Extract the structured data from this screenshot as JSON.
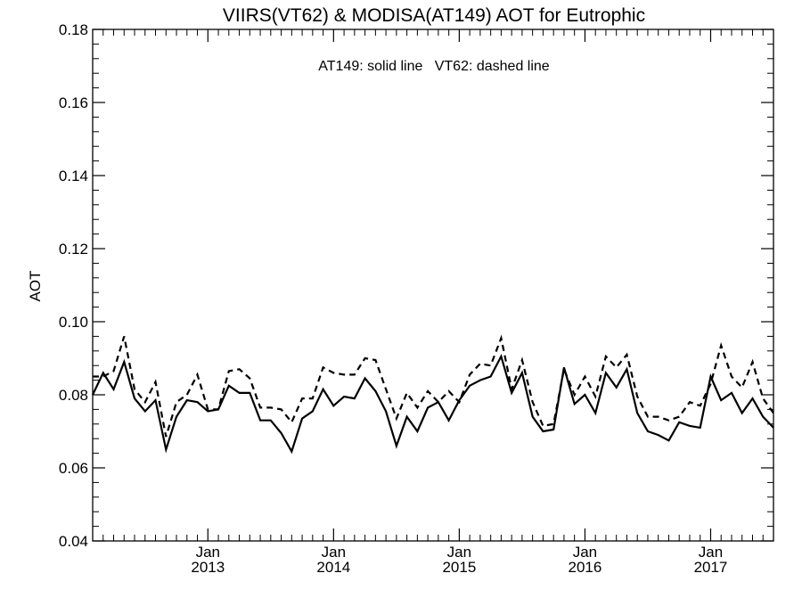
{
  "chart_data": {
    "type": "line",
    "title": "VIIRS(VT62) & MODISA(AT149)  AOT for Eutrophic",
    "annotation": "AT149: solid line   VT62: dashed line",
    "ylabel": "AOT",
    "xlabel": "",
    "ylim": [
      0.04,
      0.18
    ],
    "yticks": [
      "0.04",
      "0.06",
      "0.08",
      "0.10",
      "0.12",
      "0.14",
      "0.16",
      "0.18"
    ],
    "x_range": [
      "2012-02",
      "2017-07"
    ],
    "xtick_labels": [
      {
        "month": "Jan",
        "year": "2013",
        "date": "2013-01"
      },
      {
        "month": "Jan",
        "year": "2014",
        "date": "2014-01"
      },
      {
        "month": "Jan",
        "year": "2015",
        "date": "2015-01"
      },
      {
        "month": "Jan",
        "year": "2016",
        "date": "2016-01"
      },
      {
        "month": "Jan",
        "year": "2017",
        "date": "2017-01"
      }
    ],
    "x": [
      "2012-02",
      "2012-03",
      "2012-04",
      "2012-05",
      "2012-06",
      "2012-07",
      "2012-08",
      "2012-09",
      "2012-10",
      "2012-11",
      "2012-12",
      "2013-01",
      "2013-02",
      "2013-03",
      "2013-04",
      "2013-05",
      "2013-06",
      "2013-07",
      "2013-08",
      "2013-09",
      "2013-10",
      "2013-11",
      "2013-12",
      "2014-01",
      "2014-02",
      "2014-03",
      "2014-04",
      "2014-05",
      "2014-06",
      "2014-07",
      "2014-08",
      "2014-09",
      "2014-10",
      "2014-11",
      "2014-12",
      "2015-01",
      "2015-02",
      "2015-03",
      "2015-04",
      "2015-05",
      "2015-06",
      "2015-07",
      "2015-08",
      "2015-09",
      "2015-10",
      "2015-11",
      "2015-12",
      "2016-01",
      "2016-02",
      "2016-03",
      "2016-04",
      "2016-05",
      "2016-06",
      "2016-07",
      "2016-08",
      "2016-09",
      "2016-10",
      "2016-11",
      "2016-12",
      "2017-01",
      "2017-02",
      "2017-03",
      "2017-04",
      "2017-05",
      "2017-06",
      "2017-07"
    ],
    "series": [
      {
        "name": "AT149",
        "style": "solid",
        "color": "#000000",
        "values": [
          0.08,
          0.086,
          0.0815,
          0.089,
          0.079,
          0.0755,
          0.0785,
          0.065,
          0.074,
          0.0785,
          0.078,
          0.0755,
          0.076,
          0.0825,
          0.0805,
          0.0805,
          0.073,
          0.073,
          0.0695,
          0.0645,
          0.0735,
          0.0755,
          0.0815,
          0.077,
          0.0795,
          0.079,
          0.0845,
          0.081,
          0.0755,
          0.066,
          0.074,
          0.07,
          0.0765,
          0.078,
          0.073,
          0.0785,
          0.0825,
          0.084,
          0.085,
          0.0905,
          0.0805,
          0.086,
          0.074,
          0.07,
          0.0705,
          0.0875,
          0.0775,
          0.08,
          0.075,
          0.086,
          0.082,
          0.087,
          0.075,
          0.07,
          0.069,
          0.0675,
          0.0725,
          0.0715,
          0.071,
          0.085,
          0.0785,
          0.0805,
          0.075,
          0.079,
          0.074,
          0.071
        ]
      },
      {
        "name": "VT62",
        "style": "dashed",
        "color": "#000000",
        "values": [
          0.085,
          0.085,
          0.0865,
          0.096,
          0.0815,
          0.078,
          0.0835,
          0.0685,
          0.078,
          0.08,
          0.0855,
          0.076,
          0.076,
          0.0865,
          0.087,
          0.0845,
          0.0765,
          0.0765,
          0.076,
          0.0725,
          0.079,
          0.079,
          0.0875,
          0.086,
          0.0855,
          0.0855,
          0.09,
          0.0895,
          0.0815,
          0.0735,
          0.0805,
          0.0765,
          0.081,
          0.078,
          0.081,
          0.078,
          0.0855,
          0.0885,
          0.088,
          0.0955,
          0.0815,
          0.0895,
          0.078,
          0.0715,
          0.072,
          0.087,
          0.08,
          0.085,
          0.0795,
          0.0905,
          0.0875,
          0.091,
          0.0795,
          0.074,
          0.074,
          0.073,
          0.074,
          0.078,
          0.077,
          0.083,
          0.0935,
          0.085,
          0.082,
          0.089,
          0.079,
          0.075
        ]
      }
    ],
    "grid": false,
    "legend": "annotation text inside plot, top-center"
  }
}
